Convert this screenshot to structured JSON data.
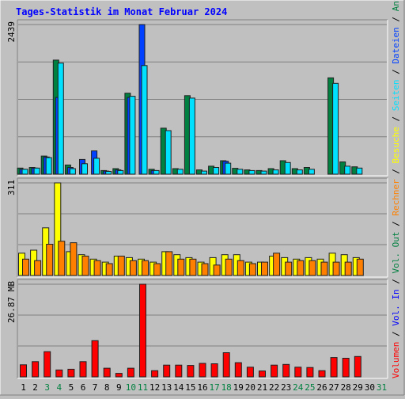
{
  "title": "Tages-Statistik im Monat Februar 2024",
  "colors": {
    "background": "#c0c0c0",
    "title": "#0000ff",
    "anfragen": "#008040",
    "dateien": "#0040ff",
    "seiten": "#00e0ff",
    "besuche": "#ffff00",
    "rechner": "#ff8000",
    "volumen": "#ff0000",
    "vol_in": "#0000ff",
    "vol_out": "#008040",
    "weekend_day": "#008040",
    "weekday": "#000000"
  },
  "right_legend": [
    {
      "label": "Volumen",
      "color": "#ff0000"
    },
    {
      "label": "Vol. In",
      "color": "#0000ff"
    },
    {
      "label": "Vol. Out",
      "color": "#008040"
    },
    {
      "label": "Rechner",
      "color": "#ff8000"
    },
    {
      "label": "Besuche",
      "color": "#ffff00"
    },
    {
      "label": "Seiten",
      "color": "#00e0ff"
    },
    {
      "label": "Dateien",
      "color": "#0040ff"
    },
    {
      "label": "Anfragen",
      "color": "#008040"
    }
  ],
  "chart_data": [
    {
      "type": "bar",
      "panel": "top",
      "y_max_label": "2439",
      "ylim": [
        0,
        2439
      ],
      "categories": [
        "1",
        "2",
        "3",
        "4",
        "5",
        "6",
        "7",
        "8",
        "9",
        "10",
        "11",
        "12",
        "13",
        "14",
        "15",
        "16",
        "17",
        "18",
        "19",
        "20",
        "21",
        "22",
        "23",
        "24",
        "25",
        "26",
        "27",
        "28",
        "29",
        "30",
        "31"
      ],
      "weekend_days": [
        "3",
        "4",
        "10",
        "11",
        "17",
        "18",
        "24",
        "25",
        "31"
      ],
      "series": [
        {
          "name": "Anfragen",
          "values": [
            100,
            110,
            295,
            1860,
            150,
            0,
            0,
            60,
            90,
            1320,
            0,
            80,
            750,
            90,
            1280,
            70,
            130,
            220,
            95,
            70,
            60,
            90,
            220,
            90,
            110,
            0,
            1570,
            200,
            120,
            0,
            0
          ]
        },
        {
          "name": "Dateien",
          "values": [
            80,
            100,
            280,
            1250,
            110,
            240,
            380,
            50,
            70,
            1250,
            2439,
            60,
            0,
            0,
            0,
            0,
            0,
            210,
            0,
            0,
            0,
            0,
            0,
            0,
            0,
            0,
            0,
            0,
            0,
            0,
            0
          ]
        },
        {
          "name": "Seiten",
          "values": [
            80,
            100,
            270,
            1810,
            90,
            170,
            260,
            45,
            60,
            1270,
            1770,
            60,
            710,
            80,
            1240,
            50,
            110,
            180,
            80,
            60,
            50,
            70,
            190,
            70,
            80,
            0,
            1480,
            130,
            100,
            0,
            0
          ]
        }
      ]
    },
    {
      "type": "bar",
      "panel": "middle",
      "y_max_label": "311",
      "ylim": [
        0,
        311
      ],
      "categories": [
        "1",
        "2",
        "3",
        "4",
        "5",
        "6",
        "7",
        "8",
        "9",
        "10",
        "11",
        "12",
        "13",
        "14",
        "15",
        "16",
        "17",
        "18",
        "19",
        "20",
        "21",
        "22",
        "23",
        "24",
        "25",
        "26",
        "27",
        "28",
        "29",
        "30",
        "31"
      ],
      "series": [
        {
          "name": "Besuche",
          "values": [
            75,
            85,
            160,
            311,
            80,
            70,
            55,
            45,
            65,
            60,
            55,
            45,
            80,
            70,
            60,
            45,
            60,
            70,
            70,
            45,
            45,
            65,
            60,
            55,
            60,
            55,
            75,
            70,
            60,
            0,
            0
          ]
        },
        {
          "name": "Rechner",
          "values": [
            55,
            50,
            105,
            115,
            110,
            65,
            50,
            40,
            65,
            50,
            50,
            40,
            80,
            55,
            55,
            40,
            35,
            55,
            50,
            40,
            45,
            75,
            45,
            50,
            50,
            45,
            45,
            45,
            55,
            0,
            0
          ]
        }
      ]
    },
    {
      "type": "bar",
      "panel": "bottom",
      "y_max_label": "26.87 MB",
      "ylim": [
        0,
        26.87
      ],
      "unit": "MB",
      "categories": [
        "1",
        "2",
        "3",
        "4",
        "5",
        "6",
        "7",
        "8",
        "9",
        "10",
        "11",
        "12",
        "13",
        "14",
        "15",
        "16",
        "17",
        "18",
        "19",
        "20",
        "21",
        "22",
        "23",
        "24",
        "25",
        "26",
        "27",
        "28",
        "29",
        "30",
        "31"
      ],
      "series": [
        {
          "name": "Volumen",
          "values": [
            3.5,
            4.4,
            7.3,
            2.0,
            2.2,
            4.4,
            10.5,
            2.5,
            1.0,
            2.5,
            26.87,
            1.8,
            3.4,
            3.4,
            3.3,
            3.9,
            3.8,
            7.0,
            4.1,
            2.8,
            1.7,
            3.4,
            3.6,
            2.8,
            2.7,
            1.8,
            5.6,
            5.4,
            5.9,
            0,
            0
          ]
        }
      ]
    }
  ]
}
